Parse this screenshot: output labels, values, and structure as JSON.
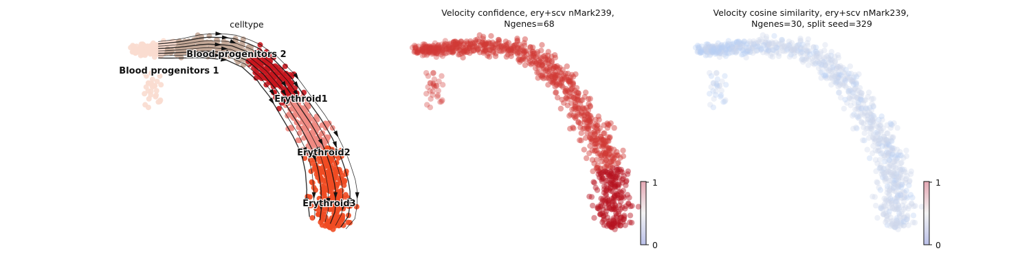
{
  "chart_data": [
    {
      "type": "scatter",
      "title": "celltype",
      "subtitle": "",
      "colors": {
        "Blood progenitors 1": "#f9dccf",
        "Blood progenitors 2": "#c4a898",
        "Erythroid1": "#c8161e",
        "Erythroid2": "#f08a82",
        "Erythroid3": "#ef4b22"
      },
      "cluster_labels": [
        {
          "text": "Blood progenitors 2"
        },
        {
          "text": "Blood progenitors 1"
        },
        {
          "text": "Erythroid1"
        },
        {
          "text": "Erythroid2"
        },
        {
          "text": "Erythroid3"
        }
      ],
      "overlay": "velocity streamlines"
    },
    {
      "type": "scatter",
      "title": "Velocity confidence, ery+scv nMark239,",
      "subtitle": "Ngenes=68",
      "colormap": "coolwarm",
      "colorbar": {
        "min": 0,
        "max": 1,
        "tick_labels": [
          "1",
          "0"
        ]
      },
      "point_color_main": "#d13a36",
      "point_color_high": "#b5121f"
    },
    {
      "type": "scatter",
      "title": "Velocity cosine similarity, ery+scv nMark239,",
      "subtitle": "Ngenes=30, split seed=329",
      "colormap": "coolwarm",
      "colorbar": {
        "min": 0,
        "max": 1,
        "tick_labels": [
          "1",
          "0"
        ]
      },
      "point_color_main": "#cdd8ea",
      "point_color_low": "#b7cdf4"
    }
  ]
}
